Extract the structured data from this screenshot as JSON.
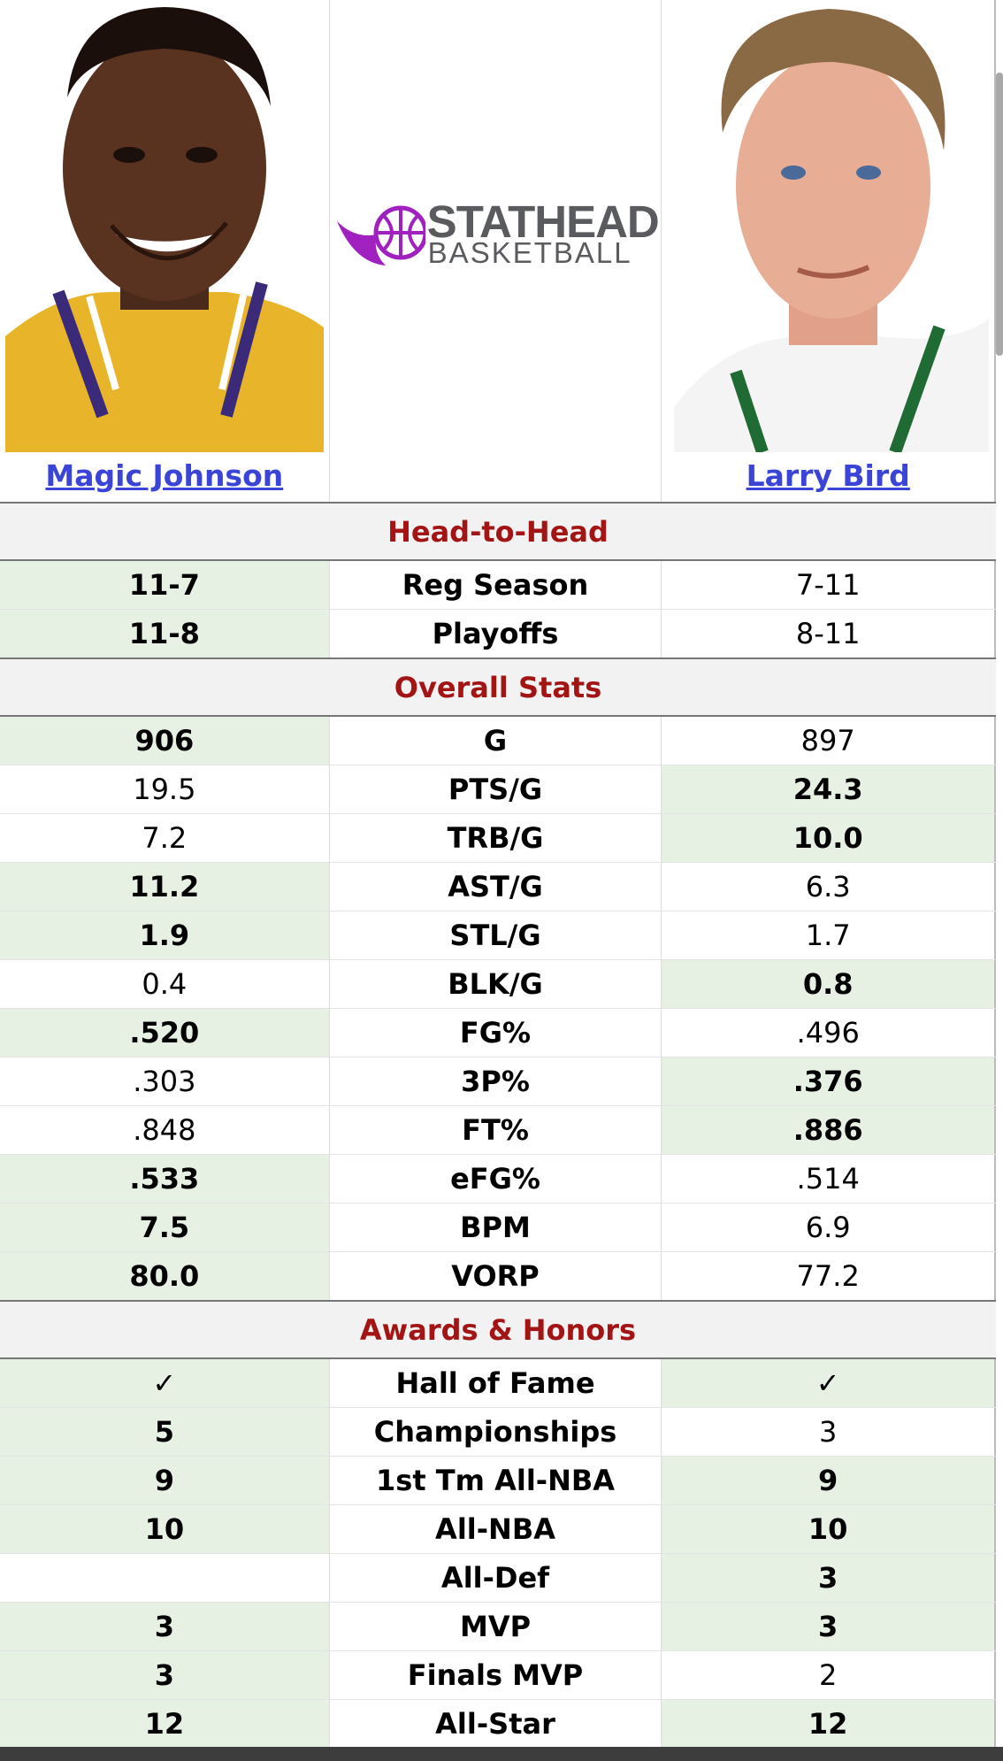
{
  "players": {
    "left": {
      "name": "Magic Johnson"
    },
    "right": {
      "name": "Larry Bird"
    }
  },
  "logo": {
    "line1": "STATHEAD",
    "line2": "BASKETBALL",
    "accent": "#a020c0"
  },
  "colors": {
    "section_title": "#a31515",
    "link": "#3a45d8",
    "winner_bg": "#e6f0e3"
  },
  "sections": [
    {
      "title": "Head-to-Head",
      "rows": [
        {
          "label": "Reg Season",
          "left": "11-7",
          "right": "7-11",
          "winner": "left"
        },
        {
          "label": "Playoffs",
          "left": "11-8",
          "right": "8-11",
          "winner": "left"
        }
      ]
    },
    {
      "title": "Overall Stats",
      "rows": [
        {
          "label": "G",
          "left": "906",
          "right": "897",
          "winner": "left"
        },
        {
          "label": "PTS/G",
          "left": "19.5",
          "right": "24.3",
          "winner": "right"
        },
        {
          "label": "TRB/G",
          "left": "7.2",
          "right": "10.0",
          "winner": "right"
        },
        {
          "label": "AST/G",
          "left": "11.2",
          "right": "6.3",
          "winner": "left"
        },
        {
          "label": "STL/G",
          "left": "1.9",
          "right": "1.7",
          "winner": "left"
        },
        {
          "label": "BLK/G",
          "left": "0.4",
          "right": "0.8",
          "winner": "right"
        },
        {
          "label": "FG%",
          "left": ".520",
          "right": ".496",
          "winner": "left"
        },
        {
          "label": "3P%",
          "left": ".303",
          "right": ".376",
          "winner": "right"
        },
        {
          "label": "FT%",
          "left": ".848",
          "right": ".886",
          "winner": "right"
        },
        {
          "label": "eFG%",
          "left": ".533",
          "right": ".514",
          "winner": "left"
        },
        {
          "label": "BPM",
          "left": "7.5",
          "right": "6.9",
          "winner": "left"
        },
        {
          "label": "VORP",
          "left": "80.0",
          "right": "77.2",
          "winner": "left"
        }
      ]
    },
    {
      "title": "Awards & Honors",
      "rows": [
        {
          "label": "Hall of Fame",
          "left": "✓",
          "right": "✓",
          "winner": "both"
        },
        {
          "label": "Championships",
          "left": "5",
          "right": "3",
          "winner": "left"
        },
        {
          "label": "1st Tm All-NBA",
          "left": "9",
          "right": "9",
          "winner": "both"
        },
        {
          "label": "All-NBA",
          "left": "10",
          "right": "10",
          "winner": "both"
        },
        {
          "label": "All-Def",
          "left": "",
          "right": "3",
          "winner": "right"
        },
        {
          "label": "MVP",
          "left": "3",
          "right": "3",
          "winner": "both"
        },
        {
          "label": "Finals MVP",
          "left": "3",
          "right": "2",
          "winner": "left"
        },
        {
          "label": "All-Star",
          "left": "12",
          "right": "12",
          "winner": "both"
        }
      ]
    }
  ]
}
